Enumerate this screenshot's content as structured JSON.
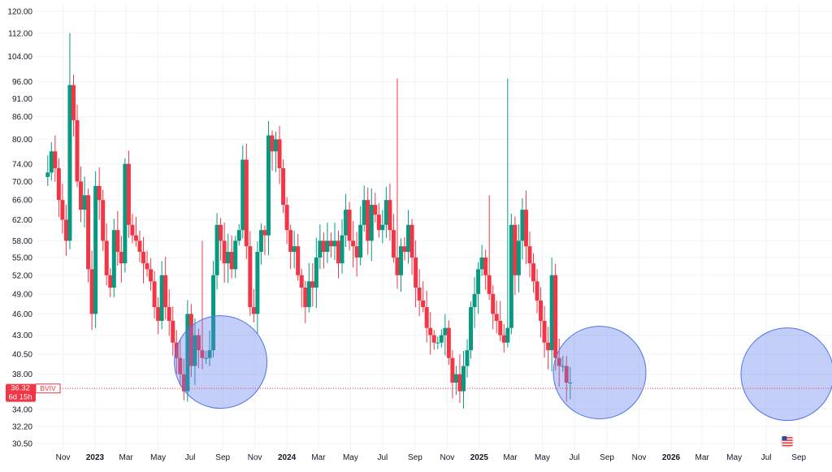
{
  "chart_data": {
    "type": "candlestick",
    "title": "",
    "xlabel": "",
    "ylabel": "",
    "y_scale": "log",
    "ylim": [
      29.5,
      121
    ],
    "grid": true,
    "y_ticks": [
      "120.00",
      "112.00",
      "104.00",
      "96.00",
      "91.00",
      "86.00",
      "80.00",
      "74.00",
      "70.00",
      "66.00",
      "62.00",
      "58.00",
      "55.00",
      "52.00",
      "49.00",
      "46.00",
      "43.00",
      "40.50",
      "38.00",
      "34.00",
      "32.20",
      "30.50"
    ],
    "x_ticks": [
      {
        "date": "2022-11-01",
        "label": "Nov",
        "year": false
      },
      {
        "date": "2023-01-01",
        "label": "2023",
        "year": true
      },
      {
        "date": "2023-03-01",
        "label": "Mar",
        "year": false
      },
      {
        "date": "2023-05-01",
        "label": "May",
        "year": false
      },
      {
        "date": "2023-07-01",
        "label": "Jul",
        "year": false
      },
      {
        "date": "2023-09-01",
        "label": "Sep",
        "year": false
      },
      {
        "date": "2023-11-01",
        "label": "Nov",
        "year": false
      },
      {
        "date": "2024-01-01",
        "label": "2024",
        "year": true
      },
      {
        "date": "2024-03-01",
        "label": "Mar",
        "year": false
      },
      {
        "date": "2024-05-01",
        "label": "May",
        "year": false
      },
      {
        "date": "2024-07-01",
        "label": "Jul",
        "year": false
      },
      {
        "date": "2024-09-01",
        "label": "Sep",
        "year": false
      },
      {
        "date": "2024-11-01",
        "label": "Nov",
        "year": false
      },
      {
        "date": "2025-01-01",
        "label": "2025",
        "year": true
      },
      {
        "date": "2025-03-01",
        "label": "Mar",
        "year": false
      },
      {
        "date": "2025-05-01",
        "label": "May",
        "year": false
      },
      {
        "date": "2025-07-01",
        "label": "Jul",
        "year": false
      },
      {
        "date": "2025-09-01",
        "label": "Sep",
        "year": false
      },
      {
        "date": "2025-11-01",
        "label": "Nov",
        "year": false
      },
      {
        "date": "2026-01-01",
        "label": "2026",
        "year": true
      },
      {
        "date": "2026-03-01",
        "label": "Mar",
        "year": false
      },
      {
        "date": "2026-05-01",
        "label": "May",
        "year": false
      },
      {
        "date": "2026-07-01",
        "label": "Jul",
        "year": false
      },
      {
        "date": "2026-09-01",
        "label": "Sep",
        "year": false
      }
    ],
    "series": [
      {
        "ticker": "BVIV",
        "interval": "weekly",
        "start_date": "2022-10-03",
        "closes": [
          72,
          77,
          73,
          66,
          62,
          58,
          95,
          85,
          70,
          64,
          67,
          53,
          46,
          69,
          66,
          58,
          52,
          50,
          60,
          56,
          54,
          74,
          61,
          59,
          58,
          56,
          54,
          53,
          51,
          47,
          45,
          52,
          47,
          45,
          42,
          40,
          38,
          36,
          46,
          39,
          43,
          41,
          40,
          40,
          41,
          52,
          61,
          58,
          54,
          56,
          53,
          58,
          60,
          75,
          57,
          47,
          46,
          56,
          60,
          59,
          81,
          77,
          80,
          73,
          65,
          60,
          56,
          57,
          52,
          50,
          47,
          51,
          50,
          55,
          58,
          56,
          58,
          57,
          58,
          54,
          59,
          64,
          58,
          57,
          55,
          61,
          66,
          58,
          65,
          63,
          60,
          61,
          66,
          60,
          55,
          52,
          57,
          56,
          61,
          55,
          50,
          48,
          47,
          44,
          43,
          42,
          42,
          43,
          44,
          40,
          37,
          38,
          36,
          39,
          41,
          47,
          49,
          53,
          55,
          52,
          49,
          46,
          45,
          43,
          42,
          44,
          61,
          52,
          58,
          64,
          57,
          54,
          51,
          48,
          45,
          42,
          41,
          52,
          40,
          39,
          39,
          37,
          37
        ],
        "sample_ohlc_first": {
          "open": 71,
          "high": 76,
          "low": 69,
          "close": 72
        }
      }
    ],
    "last_price_label": {
      "value": "36.32",
      "countdown": "6d 15h",
      "ticker": "BVIV",
      "color": "#f23645"
    },
    "highlighted_regions": [
      {
        "center_date": "2023-08-28",
        "center_value": 39.5
      },
      {
        "center_date": "2025-08-18",
        "center_value": 38.2
      },
      {
        "center_date": "2026-08-10",
        "center_value": 38.0
      }
    ],
    "colors": {
      "up": "#089981",
      "down": "#f23645",
      "grid": "#f0f3fa",
      "highlight_fill": "rgba(96, 130, 240, 0.38)",
      "highlight_stroke": "#4f73e8"
    },
    "flag_icon": "us-flag-icon"
  }
}
